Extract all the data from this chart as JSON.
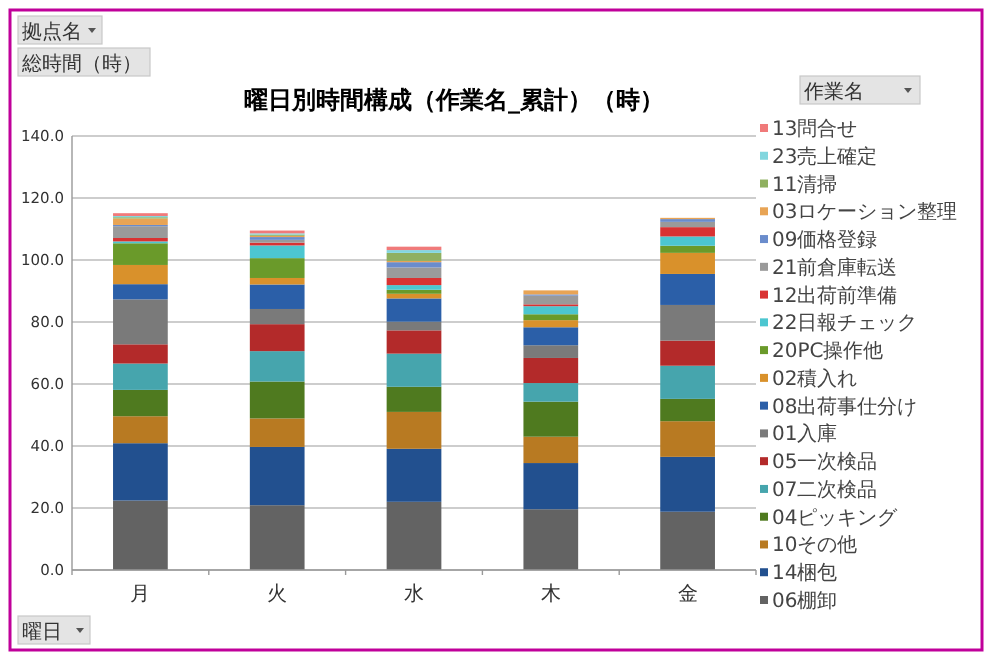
{
  "chart_data": {
    "type": "bar",
    "stacked": true,
    "title": "曜日別時間構成（作業名_累計）（時）",
    "legend_title": "作業名",
    "annotations": [
      "拠点名",
      "総時間（時）",
      "曜日"
    ],
    "categories": [
      "月",
      "火",
      "水",
      "木",
      "金"
    ],
    "series": [
      {
        "name": "06棚卸",
        "color": "#636363",
        "values": [
          22.4,
          20.9,
          22.0,
          19.6,
          18.8
        ]
      },
      {
        "name": "14梱包",
        "color": "#22508f",
        "values": [
          18.5,
          18.8,
          17.1,
          14.9,
          17.7
        ]
      },
      {
        "name": "10その他",
        "color": "#b87a22",
        "values": [
          8.7,
          9.2,
          11.9,
          8.5,
          11.5
        ]
      },
      {
        "name": "04ピッキング",
        "color": "#4f7a1f",
        "values": [
          8.5,
          11.9,
          8.1,
          11.3,
          7.2
        ]
      },
      {
        "name": "07二次検品",
        "color": "#46a5ad",
        "values": [
          8.5,
          9.8,
          10.7,
          6.0,
          10.7
        ]
      },
      {
        "name": "05一次検品",
        "color": "#b32a2a",
        "values": [
          6.2,
          8.7,
          7.5,
          8.1,
          8.1
        ]
      },
      {
        "name": "01入庫",
        "color": "#7a7a7a",
        "values": [
          14.5,
          4.9,
          2.8,
          4.1,
          11.5
        ]
      },
      {
        "name": "08出荷事仕分け",
        "color": "#2b5fa8",
        "values": [
          4.9,
          7.9,
          7.5,
          5.8,
          10.0
        ]
      },
      {
        "name": "02積入れ",
        "color": "#d9912b",
        "values": [
          6.2,
          2.1,
          1.5,
          2.3,
          6.8
        ]
      },
      {
        "name": "20PC操作他",
        "color": "#6a9a2a",
        "values": [
          7.0,
          6.4,
          1.3,
          1.9,
          2.3
        ]
      },
      {
        "name": "22日報チェック",
        "color": "#4cc6d0",
        "values": [
          0.6,
          4.1,
          1.5,
          2.6,
          3.0
        ]
      },
      {
        "name": "12出荷前準備",
        "color": "#d93232",
        "values": [
          1.1,
          0.9,
          2.3,
          0.6,
          3.0
        ]
      },
      {
        "name": "21前倉庫転送",
        "color": "#9a9a9a",
        "values": [
          3.8,
          0.9,
          3.4,
          2.8,
          1.7
        ]
      },
      {
        "name": "09価格登録",
        "color": "#6a8ccc",
        "values": [
          0.4,
          0.9,
          1.7,
          0.4,
          0.9
        ]
      },
      {
        "name": "03ロケーション整理",
        "color": "#e8a455",
        "values": [
          2.1,
          0.4,
          0.4,
          1.3,
          0.4
        ]
      },
      {
        "name": "11清掃",
        "color": "#8fb060",
        "values": [
          0.4,
          0.4,
          2.6,
          0,
          0
        ]
      },
      {
        "name": "23売上確定",
        "color": "#82d6de",
        "values": [
          0.4,
          0.4,
          0.9,
          0,
          0
        ]
      },
      {
        "name": "13問合せ",
        "color": "#f07a7a",
        "values": [
          0.9,
          0.9,
          1.1,
          0,
          0
        ]
      }
    ],
    "ylim": [
      0,
      140
    ],
    "yticks": [
      {
        "value": 0,
        "label": "0.0"
      },
      {
        "value": 20,
        "label": "20.0"
      },
      {
        "value": 40,
        "label": "40.0"
      },
      {
        "value": 60,
        "label": "60.0"
      },
      {
        "value": 80,
        "label": "80.0"
      },
      {
        "value": 100,
        "label": "100.0"
      },
      {
        "value": 120,
        "label": "120.0"
      },
      {
        "value": 140,
        "label": "140.0"
      }
    ],
    "grid": "y",
    "legend": "right"
  }
}
